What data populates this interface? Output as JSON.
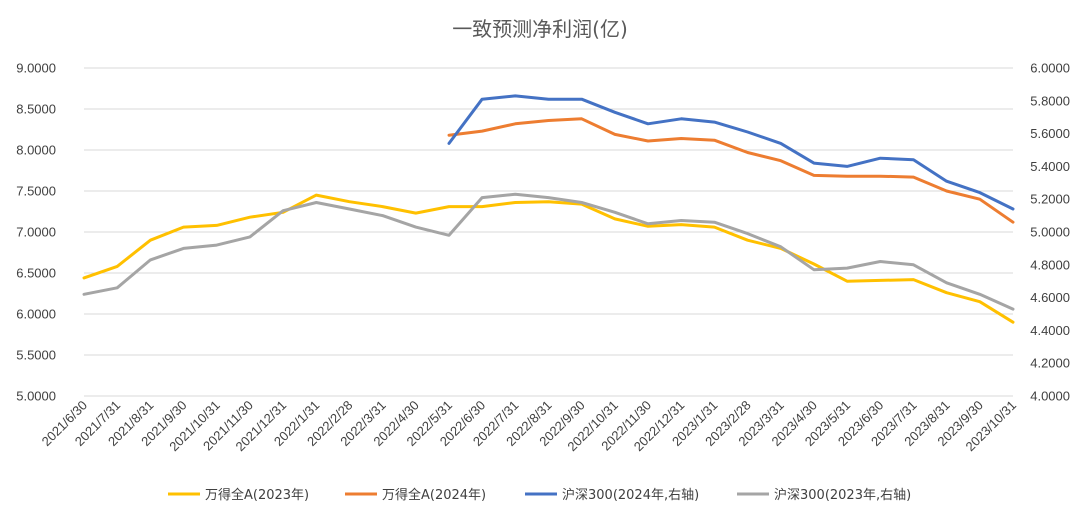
{
  "chart_data": {
    "type": "line",
    "title": "一致预测净利润(亿)",
    "categories": [
      "2021/6/30",
      "2021/7/31",
      "2021/8/31",
      "2021/9/30",
      "2021/10/31",
      "2021/11/30",
      "2021/12/31",
      "2022/1/31",
      "2022/2/28",
      "2022/3/31",
      "2022/4/30",
      "2022/5/31",
      "2022/6/30",
      "2022/7/31",
      "2022/8/31",
      "2022/9/30",
      "2022/10/31",
      "2022/11/30",
      "2022/12/31",
      "2023/1/31",
      "2023/2/28",
      "2023/3/31",
      "2023/4/30",
      "2023/5/31",
      "2023/6/30",
      "2023/7/31",
      "2023/8/31",
      "2023/9/30",
      "2023/10/31"
    ],
    "left_axis": {
      "ylim": [
        5.0,
        9.0
      ],
      "ticks": [
        "5.0000",
        "5.5000",
        "6.0000",
        "6.5000",
        "7.0000",
        "7.5000",
        "8.0000",
        "8.5000",
        "9.0000"
      ],
      "tick_values": [
        5.0,
        5.5,
        6.0,
        6.5,
        7.0,
        7.5,
        8.0,
        8.5,
        9.0
      ]
    },
    "right_axis": {
      "ylim": [
        4.0,
        6.0
      ],
      "ticks": [
        "4.0000",
        "4.2000",
        "4.4000",
        "4.6000",
        "4.8000",
        "5.0000",
        "5.2000",
        "5.4000",
        "5.6000",
        "5.8000",
        "6.0000"
      ],
      "tick_values": [
        4.0,
        4.2,
        4.4,
        4.6,
        4.8,
        5.0,
        5.2,
        5.4,
        5.6,
        5.8,
        6.0
      ]
    },
    "grid": true,
    "legend_position": "bottom",
    "series": [
      {
        "name": "万得全A(2023年)",
        "axis": "left",
        "color": "#FFC000",
        "values": [
          6.44,
          6.58,
          6.9,
          7.06,
          7.08,
          7.18,
          7.24,
          7.45,
          7.37,
          7.31,
          7.23,
          7.31,
          7.31,
          7.36,
          7.37,
          7.34,
          7.16,
          7.07,
          7.09,
          7.06,
          6.9,
          6.8,
          6.61,
          6.4,
          6.41,
          6.42,
          6.26,
          6.15,
          5.9
        ]
      },
      {
        "name": "万得全A(2024年)",
        "axis": "left",
        "color": "#ED7D31",
        "values": [
          null,
          null,
          null,
          null,
          null,
          null,
          null,
          null,
          null,
          null,
          null,
          8.18,
          8.23,
          8.32,
          8.36,
          8.38,
          8.19,
          8.11,
          8.14,
          8.12,
          7.97,
          7.87,
          7.69,
          7.68,
          7.68,
          7.67,
          7.5,
          7.4,
          7.12
        ]
      },
      {
        "name": "沪深300(2024年,右轴)",
        "axis": "right",
        "color": "#4472C4",
        "values": [
          null,
          null,
          null,
          null,
          null,
          null,
          null,
          null,
          null,
          null,
          null,
          5.54,
          5.81,
          5.83,
          5.81,
          5.81,
          5.73,
          5.66,
          5.69,
          5.67,
          5.61,
          5.54,
          5.42,
          5.4,
          5.45,
          5.44,
          5.31,
          5.24,
          5.14
        ]
      },
      {
        "name": "沪深300(2023年,右轴)",
        "axis": "right",
        "color": "#A5A5A5",
        "values": [
          4.62,
          4.66,
          4.83,
          4.9,
          4.92,
          4.97,
          5.13,
          5.18,
          5.14,
          5.1,
          5.03,
          4.98,
          5.21,
          5.23,
          5.21,
          5.18,
          5.12,
          5.05,
          5.07,
          5.06,
          4.99,
          4.91,
          4.77,
          4.78,
          4.82,
          4.8,
          4.69,
          4.62,
          4.53
        ]
      }
    ]
  }
}
